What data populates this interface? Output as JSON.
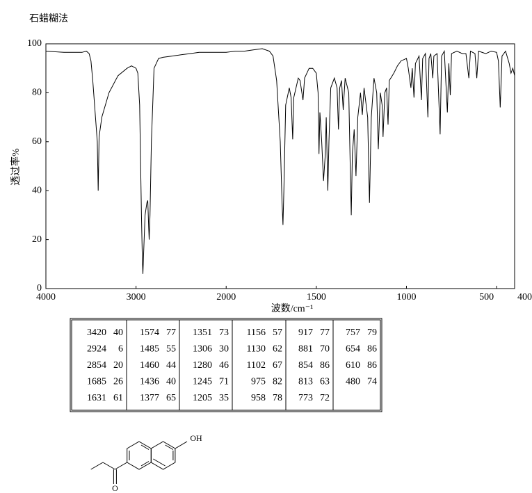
{
  "chart_data": {
    "type": "line",
    "title": "石蜡糊法",
    "x_label": "波数/cm⁻¹",
    "y_label": "透过率%",
    "color": "#000000",
    "xlim": [
      4000,
      400
    ],
    "xticks": [
      4000,
      3000,
      2000,
      1500,
      1000,
      500,
      400
    ],
    "ylim": [
      0,
      100
    ],
    "yticks": [
      0,
      20,
      40,
      60,
      80,
      100
    ],
    "x": [
      4000,
      3800,
      3600,
      3550,
      3520,
      3500,
      3480,
      3450,
      3430,
      3420,
      3410,
      3380,
      3300,
      3200,
      3100,
      3050,
      3000,
      2980,
      2960,
      2940,
      2930,
      2924,
      2915,
      2900,
      2880,
      2870,
      2860,
      2854,
      2845,
      2830,
      2800,
      2750,
      2700,
      2600,
      2500,
      2400,
      2300,
      2200,
      2100,
      2000,
      1950,
      1900,
      1850,
      1800,
      1760,
      1740,
      1720,
      1700,
      1690,
      1685,
      1680,
      1670,
      1650,
      1640,
      1631,
      1625,
      1600,
      1590,
      1580,
      1574,
      1565,
      1540,
      1520,
      1500,
      1490,
      1485,
      1480,
      1470,
      1460,
      1450,
      1445,
      1436,
      1430,
      1420,
      1400,
      1385,
      1377,
      1370,
      1360,
      1351,
      1340,
      1320,
      1312,
      1306,
      1300,
      1290,
      1280,
      1270,
      1255,
      1245,
      1235,
      1215,
      1205,
      1195,
      1180,
      1165,
      1156,
      1145,
      1135,
      1130,
      1120,
      1110,
      1102,
      1095,
      1070,
      1050,
      1030,
      1000,
      990,
      975,
      968,
      958,
      950,
      930,
      917,
      910,
      895,
      881,
      875,
      865,
      854,
      848,
      830,
      813,
      805,
      790,
      773,
      765,
      757,
      750,
      720,
      690,
      670,
      654,
      645,
      620,
      610,
      600,
      560,
      530,
      500,
      490,
      480,
      470,
      450,
      430,
      420,
      410,
      400
    ],
    "values": [
      97,
      96.5,
      96.5,
      97,
      96,
      93,
      85,
      70,
      60,
      40,
      62,
      70,
      80,
      87,
      90,
      91,
      90,
      88,
      75,
      30,
      12,
      6,
      15,
      30,
      35,
      36,
      25,
      20,
      30,
      60,
      90,
      94,
      94.5,
      95,
      95.5,
      96,
      96.5,
      96.5,
      96.5,
      96.5,
      97,
      97,
      97.5,
      98,
      97,
      95,
      85,
      60,
      35,
      26,
      40,
      75,
      82,
      78,
      61,
      78,
      86,
      85,
      80,
      77,
      86,
      90,
      90,
      88,
      80,
      55,
      72,
      60,
      44,
      55,
      70,
      40,
      60,
      82,
      86,
      82,
      65,
      82,
      85,
      73,
      86,
      80,
      50,
      30,
      55,
      65,
      46,
      70,
      80,
      71,
      82,
      70,
      35,
      70,
      86,
      80,
      57,
      80,
      75,
      62,
      80,
      82,
      67,
      85,
      88,
      91,
      93,
      94,
      90,
      82,
      90,
      78,
      92,
      95,
      77,
      94,
      96,
      70,
      94,
      96,
      86,
      95,
      96,
      63,
      95,
      97,
      72,
      92,
      79,
      96,
      97,
      96,
      96,
      86,
      97,
      96,
      86,
      97,
      96,
      97,
      96.5,
      93,
      74,
      95,
      97,
      92,
      88,
      90,
      87
    ]
  },
  "peak_table": {
    "wavenumbers": [
      3420,
      2924,
      2854,
      1685,
      1631,
      1574,
      1485,
      1460,
      1436,
      1377,
      1351,
      1306,
      1280,
      1245,
      1205,
      1156,
      1130,
      1102,
      975,
      958,
      917,
      881,
      854,
      813,
      773,
      757,
      654,
      610,
      480
    ],
    "transmittance": [
      40,
      6,
      20,
      26,
      61,
      77,
      55,
      44,
      40,
      65,
      73,
      30,
      46,
      71,
      35,
      57,
      62,
      67,
      82,
      78,
      77,
      70,
      86,
      63,
      72,
      79,
      86,
      86,
      74
    ]
  },
  "structure": {
    "labels": [
      "OH",
      "O"
    ]
  }
}
